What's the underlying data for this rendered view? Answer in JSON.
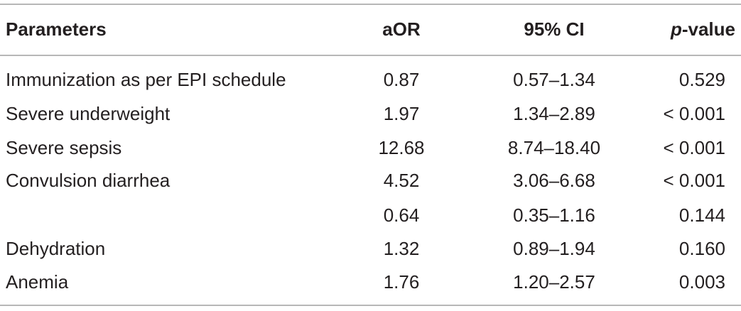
{
  "table": {
    "headers": {
      "parameters": "Parameters",
      "aor": "aOR",
      "ci": "95% CI",
      "p_prefix": "p",
      "p_suffix": "-value"
    },
    "rows": [
      {
        "parameter": "Immunization as per EPI schedule",
        "aor": "0.87",
        "ci": "0.57–1.34",
        "p": "0.529"
      },
      {
        "parameter": "Severe underweight",
        "aor": "1.97",
        "ci": "1.34–2.89",
        "p": "< 0.001"
      },
      {
        "parameter": "Severe sepsis",
        "aor": "12.68",
        "ci": "8.74–18.40",
        "p": "< 0.001"
      },
      {
        "parameter": "Convulsion diarrhea",
        "aor": "4.52",
        "ci": "3.06–6.68",
        "p": "< 0.001"
      },
      {
        "parameter": "",
        "aor": "0.64",
        "ci": "0.35–1.16",
        "p": "0.144"
      },
      {
        "parameter": "Dehydration",
        "aor": "1.32",
        "ci": "0.89–1.94",
        "p": "0.160"
      },
      {
        "parameter": "Anemia",
        "aor": "1.76",
        "ci": "1.20–2.57",
        "p": "0.003"
      }
    ]
  }
}
